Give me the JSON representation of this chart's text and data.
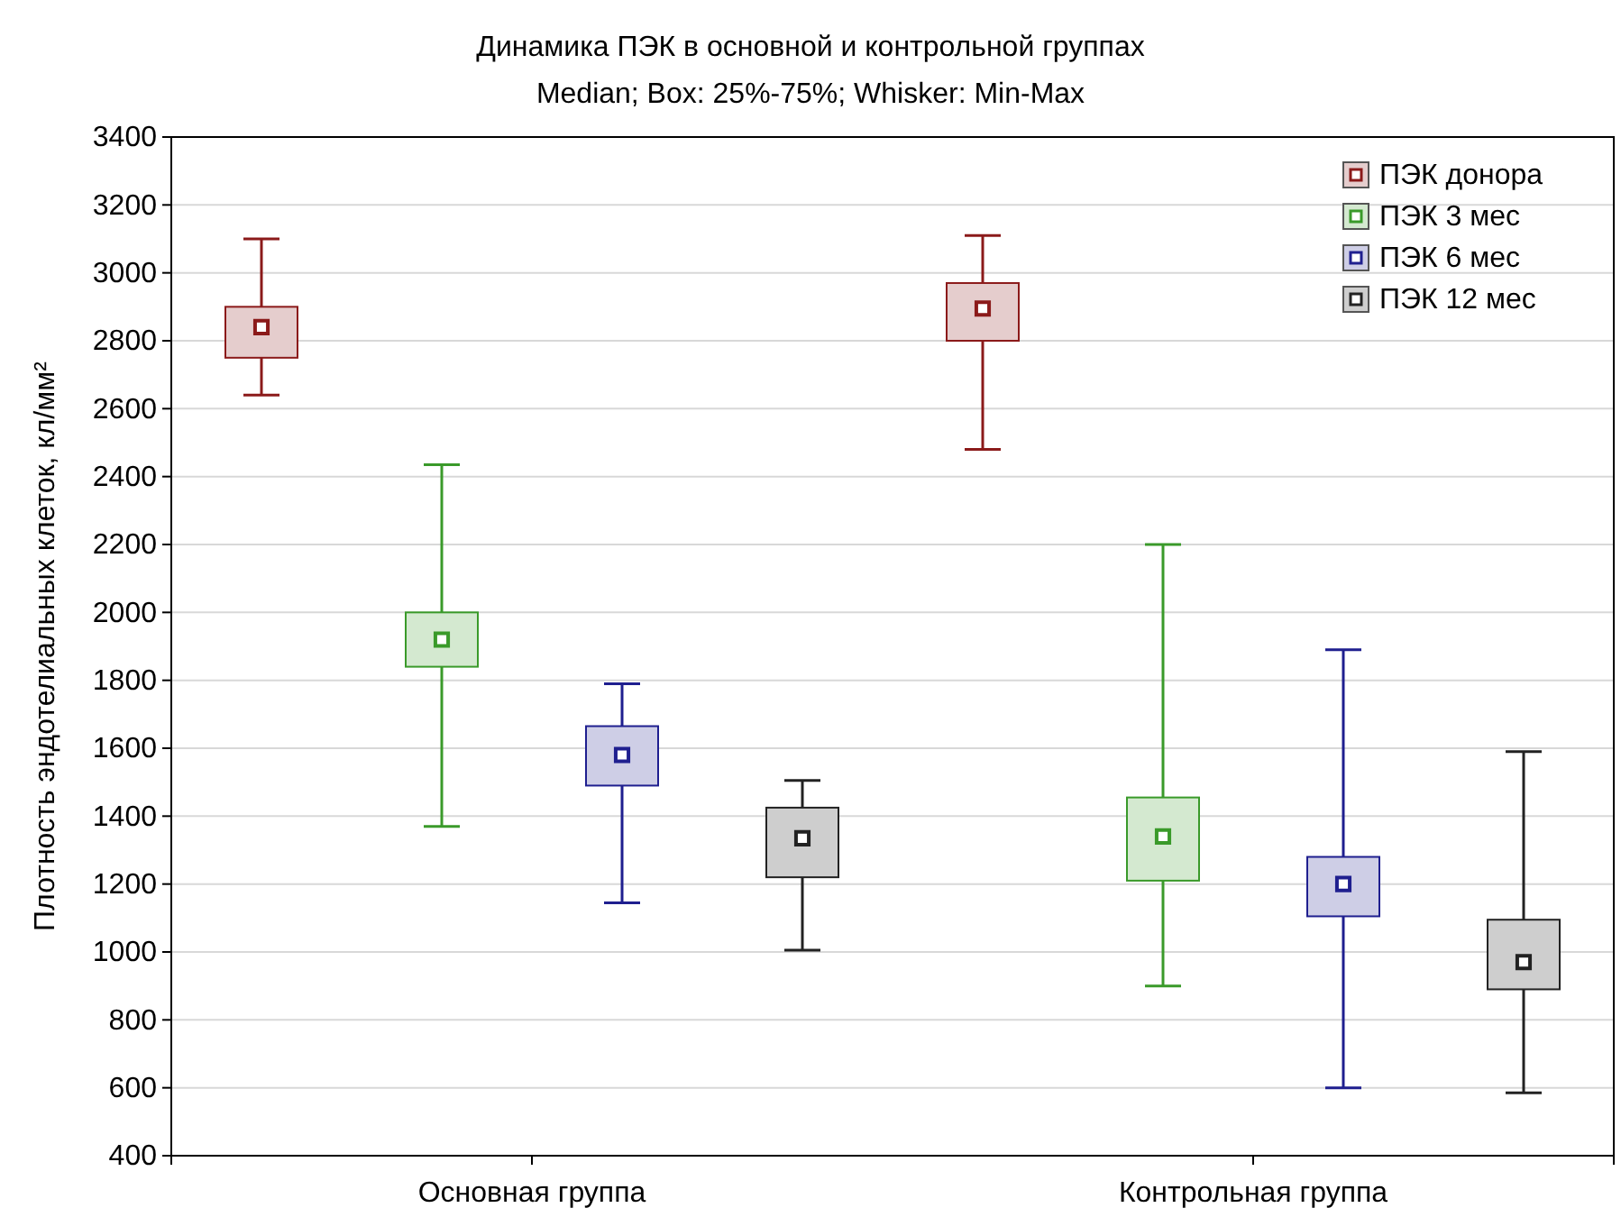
{
  "chart_data": {
    "type": "box",
    "title": "Динамика ПЭК в основной и контрольной группах",
    "subtitle": "Median; Box: 25%-75%; Whisker: Min-Max",
    "ylabel": "Плотность эндотелиальных клеток, кл/мм²",
    "categories": [
      "Основная группа",
      "Контрольная группа"
    ],
    "ylim": [
      400,
      3400
    ],
    "yticks": [
      400,
      600,
      800,
      1000,
      1200,
      1400,
      1600,
      1800,
      2000,
      2200,
      2400,
      2600,
      2800,
      3000,
      3200,
      3400
    ],
    "grid": "y",
    "legend": "top right",
    "marker": "square",
    "series": [
      {
        "name": "ПЭК донора",
        "color": "#8b1a1a",
        "boxes": [
          {
            "low": 2640,
            "q1": 2750,
            "median": 2840,
            "q3": 2900,
            "high": 3100
          },
          {
            "low": 2480,
            "q1": 2800,
            "median": 2895,
            "q3": 2970,
            "high": 3110
          }
        ]
      },
      {
        "name": "ПЭК 3 мес",
        "color": "#3a9a2a",
        "boxes": [
          {
            "low": 1370,
            "q1": 1840,
            "median": 1920,
            "q3": 2000,
            "high": 2435
          },
          {
            "low": 900,
            "q1": 1210,
            "median": 1340,
            "q3": 1455,
            "high": 2200
          }
        ]
      },
      {
        "name": "ПЭК 6 мес",
        "color": "#1f1f8f",
        "boxes": [
          {
            "low": 1145,
            "q1": 1490,
            "median": 1580,
            "q3": 1665,
            "high": 1790
          },
          {
            "low": 600,
            "q1": 1105,
            "median": 1200,
            "q3": 1280,
            "high": 1890
          }
        ]
      },
      {
        "name": "ПЭК 12 мес",
        "color": "#222222",
        "boxes": [
          {
            "low": 1005,
            "q1": 1220,
            "median": 1335,
            "q3": 1425,
            "high": 1505
          },
          {
            "low": 585,
            "q1": 890,
            "median": 970,
            "q3": 1095,
            "high": 1590
          }
        ]
      }
    ]
  }
}
